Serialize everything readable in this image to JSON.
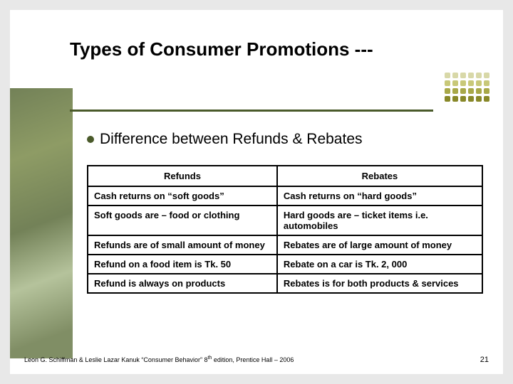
{
  "title": "Types of Consumer Promotions ---",
  "bullet": "Difference between Refunds & Rebates",
  "table": {
    "headers": [
      "Refunds",
      "Rebates"
    ],
    "rows": [
      [
        "Cash returns on “soft goods”",
        "Cash returns on “hard goods”"
      ],
      [
        "Soft goods are – food or clothing",
        "Hard goods are – ticket items i.e. automobiles"
      ],
      [
        "Refunds are of small amount of money",
        "Rebates are of large amount of money"
      ],
      [
        "Refund on a food item is Tk. 50",
        "Rebate on a car is Tk. 2, 000"
      ],
      [
        "Refund is always on products",
        "Rebates is for both products & services"
      ]
    ]
  },
  "footer": {
    "citation_prefix": "Leon G. Schiffman & Leslie Lazar Kanuk “Consumer Behavior” 8",
    "citation_suffix": " edition, Prentice Hall – 2006",
    "page": "21"
  },
  "colors": {
    "accent": "#4a5a2a",
    "dot_colors": [
      "#d8d8a8",
      "#d8d8a8",
      "#d8d8a8",
      "#d8d8a8",
      "#d8d8a8",
      "#d8d8a8",
      "#c8c878",
      "#c8c878",
      "#c8c878",
      "#c8c878",
      "#c8c878",
      "#c8c878",
      "#a8a848",
      "#a8a848",
      "#a8a848",
      "#a8a848",
      "#a8a848",
      "#a8a848",
      "#888828",
      "#888828",
      "#888828",
      "#888828",
      "#888828",
      "#888828"
    ]
  }
}
